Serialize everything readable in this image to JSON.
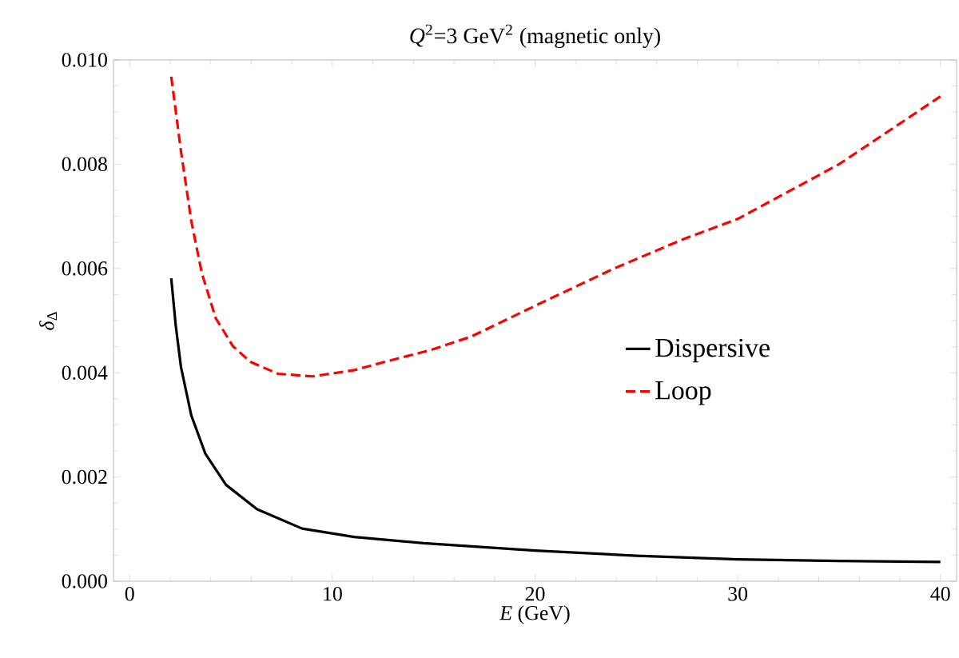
{
  "chart_data": {
    "type": "line",
    "title": "*Q*$^{2}$=3 GeV$^{2}$ (magnetic only)",
    "xlabel": "*E* (GeV)",
    "ylabel": "*δ*$_{Δ}$",
    "xlim": [
      -0.8,
      40.8
    ],
    "ylim": [
      0,
      0.01
    ],
    "xticks": [
      0,
      10,
      20,
      30,
      40
    ],
    "yticks": [
      {
        "value": 0,
        "label": "0.000"
      },
      {
        "value": 0.002,
        "label": "0.002"
      },
      {
        "value": 0.004,
        "label": "0.004"
      },
      {
        "value": 0.006,
        "label": "0.006"
      },
      {
        "value": 0.008,
        "label": "0.008"
      },
      {
        "value": 0.01,
        "label": "0.010"
      }
    ],
    "legend": "right",
    "marker": "none",
    "series": [
      {
        "name": "Dispersive",
        "color": "#000000",
        "line_style": "solid",
        "x": [
          2.05,
          2.27,
          2.53,
          3.04,
          3.73,
          4.75,
          6.29,
          8.51,
          11.08,
          14.5,
          20,
          25,
          30,
          35,
          40
        ],
        "values": [
          0.00581,
          0.00491,
          0.00411,
          0.00318,
          0.00245,
          0.00185,
          0.00138,
          0.00101,
          0.00085,
          0.00073,
          0.00059,
          0.00049,
          0.00042,
          0.00039,
          0.00037
        ]
      },
      {
        "name": "Loop",
        "color": "#ff0000",
        "line_style": "dashed",
        "x": [
          2.05,
          2.53,
          3.04,
          3.56,
          4.24,
          5.09,
          5.95,
          7.32,
          9.03,
          11.08,
          12.79,
          14.8,
          16.83,
          20.36,
          23.9,
          27.24,
          30,
          35,
          40
        ],
        "values": [
          0.00968,
          0.00825,
          0.00691,
          0.00591,
          0.00505,
          0.00451,
          0.00421,
          0.00398,
          0.00393,
          0.00405,
          0.00423,
          0.00443,
          0.00469,
          0.00535,
          0.006,
          0.00655,
          0.00695,
          0.008,
          0.0093
        ]
      }
    ]
  }
}
